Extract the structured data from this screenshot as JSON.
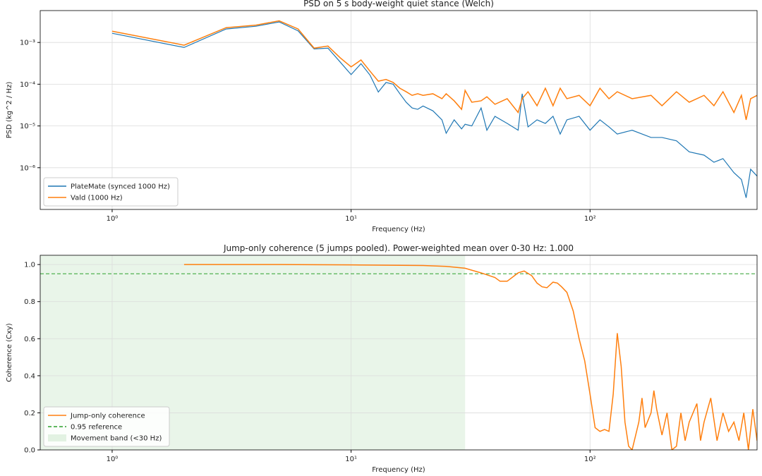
{
  "chart_data": [
    {
      "type": "line",
      "title": "PSD on 5 s body-weight quiet stance (Welch)",
      "xlabel": "Frequency (Hz)",
      "ylabel": "PSD (kg^2 / Hz)",
      "xscale": "log",
      "yscale": "log",
      "grid": true,
      "legend": "lower left",
      "xlim": [
        0.5,
        500
      ],
      "ylim": [
        1e-07,
        0.0058
      ],
      "xticks": [
        {
          "value": 1,
          "label": "10⁰"
        },
        {
          "value": 10,
          "label": "10¹"
        },
        {
          "value": 100,
          "label": "10²"
        }
      ],
      "yticks": [
        {
          "value": 1e-06,
          "label": "10⁻⁶"
        },
        {
          "value": 1e-05,
          "label": "10⁻⁵"
        },
        {
          "value": 0.0001,
          "label": "10⁻⁴"
        },
        {
          "value": 0.001,
          "label": "10⁻³"
        }
      ],
      "x": [
        1,
        2,
        3,
        4,
        5,
        6,
        7,
        8,
        9,
        10,
        11,
        12,
        13,
        14,
        15,
        16,
        17,
        18,
        19,
        20,
        22,
        24,
        25,
        27,
        29,
        30,
        32,
        35,
        37,
        40,
        45,
        50,
        52,
        55,
        60,
        65,
        70,
        75,
        80,
        90,
        100,
        110,
        120,
        130,
        150,
        180,
        200,
        230,
        260,
        300,
        330,
        360,
        400,
        430,
        450,
        470,
        500
      ],
      "series": [
        {
          "name": "PlateMate (synced 1000 Hz)",
          "color": "#1f77b4",
          "values": [
            0.00166,
            0.00076,
            0.0021,
            0.00245,
            0.0031,
            0.0019,
            0.0007,
            0.00073,
            0.00034,
            0.00017,
            0.00031,
            0.000165,
            6.5e-05,
            0.00011,
            0.0001,
            5.9e-05,
            3.7e-05,
            2.7e-05,
            2.5e-05,
            3e-05,
            2.3e-05,
            1.4e-05,
            6.7e-06,
            1.4e-05,
            8.5e-06,
            1.1e-05,
            1e-05,
            2.7e-05,
            7.9e-06,
            1.7e-05,
            1.15e-05,
            7.9e-06,
            5.9e-05,
            9.5e-06,
            1.4e-05,
            1.15e-05,
            1.7e-05,
            6.4e-06,
            1.4e-05,
            1.7e-05,
            7.9e-06,
            1.4e-05,
            9.5e-06,
            6.4e-06,
            7.9e-06,
            5.3e-06,
            5.3e-06,
            4.4e-06,
            2.4e-06,
            2e-06,
            1.35e-06,
            1.65e-06,
            7.6e-07,
            5.2e-07,
            1.9e-07,
            9.2e-07,
            6.3e-07
          ]
        },
        {
          "name": "Vald (1000 Hz)",
          "color": "#ff7f0e",
          "values": [
            0.00186,
            0.00086,
            0.00226,
            0.0026,
            0.0033,
            0.0021,
            0.00073,
            0.00082,
            0.00043,
            0.00026,
            0.00038,
            0.000205,
            0.000118,
            0.00013,
            0.00011,
            8e-05,
            6.6e-05,
            5.4e-05,
            5.9e-05,
            5.4e-05,
            5.9e-05,
            4.5e-05,
            5.9e-05,
            4e-05,
            2.5e-05,
            7.1e-05,
            3.7e-05,
            4e-05,
            5e-05,
            3.3e-05,
            4.5e-05,
            2.1e-05,
            4.5e-05,
            6.6e-05,
            3.05e-05,
            8e-05,
            3.05e-05,
            8e-05,
            4.5e-05,
            5.4e-05,
            3.05e-05,
            8e-05,
            4.5e-05,
            6.6e-05,
            4.5e-05,
            5.4e-05,
            3.05e-05,
            6.6e-05,
            3.7e-05,
            5.4e-05,
            3.05e-05,
            6.6e-05,
            2.1e-05,
            5.4e-05,
            1.4e-05,
            4.5e-05,
            5.4e-05
          ]
        }
      ]
    },
    {
      "type": "line",
      "title": "Jump-only coherence (5 jumps pooled). Power-weighted mean over 0-30 Hz: 1.000",
      "xlabel": "Frequency (Hz)",
      "ylabel": "Coherence (Cxy)",
      "xscale": "log",
      "yscale": "linear",
      "grid": true,
      "legend": "lower left",
      "xlim": [
        0.5,
        500
      ],
      "ylim": [
        0,
        1.05
      ],
      "xticks": [
        {
          "value": 1,
          "label": "10⁰"
        },
        {
          "value": 10,
          "label": "10¹"
        },
        {
          "value": 100,
          "label": "10²"
        }
      ],
      "yticks": [
        {
          "value": 0,
          "label": "0.0"
        },
        0.2,
        0.4,
        0.6,
        0.8,
        {
          "value": 1,
          "label": "1.0"
        }
      ],
      "x": [
        2,
        5,
        10,
        20,
        25,
        30,
        35,
        40,
        42,
        45,
        50,
        53,
        57,
        60,
        63,
        66,
        70,
        73,
        76,
        80,
        85,
        90,
        95,
        100,
        105,
        110,
        115,
        120,
        125,
        130,
        135,
        140,
        145,
        150,
        160,
        165,
        170,
        180,
        185,
        190,
        200,
        210,
        220,
        230,
        240,
        250,
        260,
        280,
        290,
        300,
        320,
        340,
        360,
        380,
        400,
        420,
        440,
        460,
        480,
        500
      ],
      "series": [
        {
          "name": "Jump-only coherence",
          "color": "#ff7f0e",
          "values": [
            1.0,
            1.0,
            0.998,
            0.995,
            0.99,
            0.98,
            0.955,
            0.93,
            0.91,
            0.91,
            0.955,
            0.965,
            0.94,
            0.9,
            0.88,
            0.875,
            0.905,
            0.9,
            0.88,
            0.85,
            0.75,
            0.6,
            0.48,
            0.3,
            0.12,
            0.1,
            0.11,
            0.1,
            0.3,
            0.63,
            0.45,
            0.15,
            0.02,
            0.0,
            0.15,
            0.28,
            0.12,
            0.2,
            0.32,
            0.22,
            0.08,
            0.2,
            0.0,
            0.02,
            0.2,
            0.05,
            0.15,
            0.25,
            0.05,
            0.15,
            0.28,
            0.05,
            0.2,
            0.1,
            0.15,
            0.05,
            0.2,
            0.0,
            0.22,
            0.05
          ]
        }
      ],
      "hlines": [
        {
          "name": "0.95 reference",
          "value": 0.95,
          "color": "#2ca02c"
        }
      ],
      "spans": [
        {
          "name": "Movement band (<30 Hz)",
          "x0": 0.5,
          "x1": 30,
          "color": "#2ca02c"
        }
      ]
    }
  ]
}
